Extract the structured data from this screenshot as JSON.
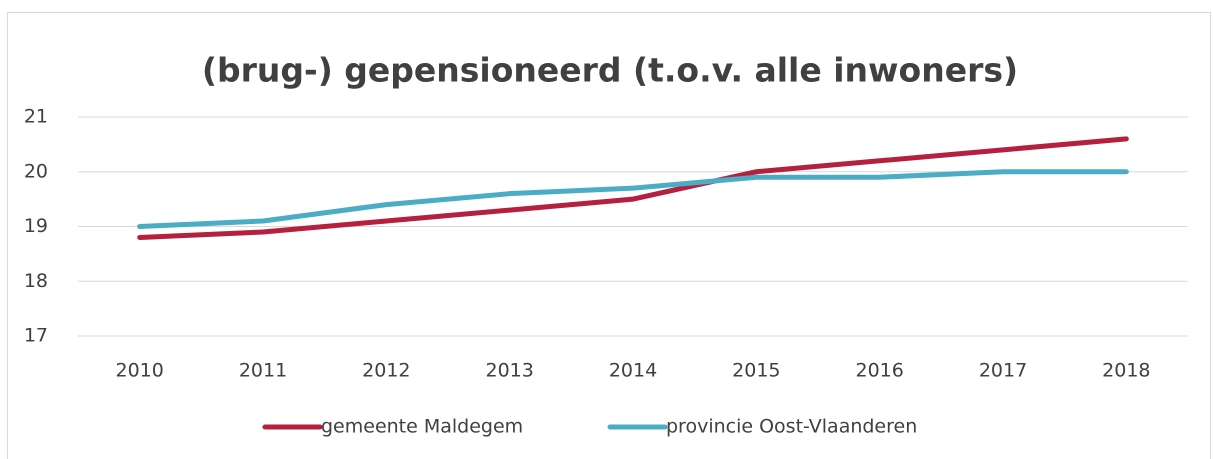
{
  "chart_data": {
    "type": "line",
    "title": "(brug-) gepensioneerd (t.o.v. alle inwoners)",
    "categories": [
      "2010",
      "2011",
      "2012",
      "2013",
      "2014",
      "2015",
      "2016",
      "2017",
      "2018"
    ],
    "series": [
      {
        "name": "gemeente Maldegem",
        "color": "#b5203f",
        "values": [
          18.8,
          18.9,
          19.1,
          19.3,
          19.5,
          20.0,
          20.2,
          20.4,
          20.6
        ]
      },
      {
        "name": "provincie Oost-Vlaanderen",
        "color": "#4bacc6",
        "values": [
          19.0,
          19.1,
          19.4,
          19.6,
          19.7,
          19.9,
          19.9,
          20.0,
          20.0
        ]
      }
    ],
    "ylim": [
      17,
      21
    ],
    "yticks": [
      17,
      18,
      19,
      20,
      21
    ],
    "grid": true,
    "legend": "bottom"
  }
}
